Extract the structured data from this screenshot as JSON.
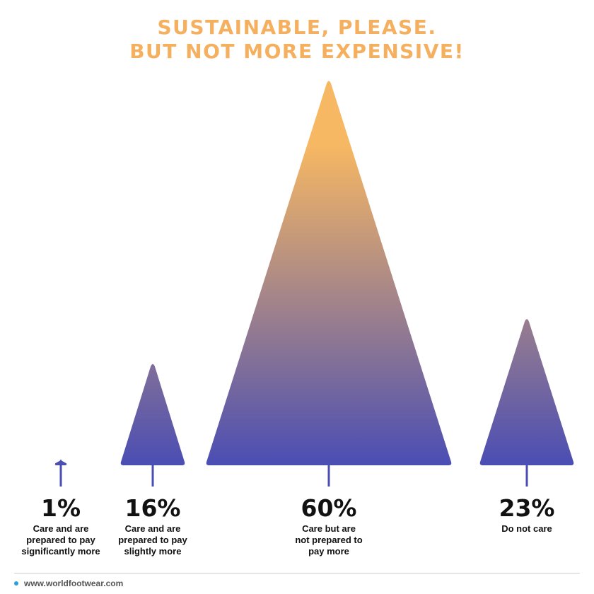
{
  "title": {
    "line1": "SUSTAINABLE, PLEASE.",
    "line2": "BUT NOT MORE EXPENSIVE!"
  },
  "colors": {
    "title": "#F5B05F",
    "gradient_top": "#F7B863",
    "gradient_bottom": "#4A4DB3",
    "stem": "#4A4DB3",
    "footer_dot": "#2A9FD8"
  },
  "chart_data": {
    "type": "bar",
    "categories": [
      "Care and are prepared to pay significantly more",
      "Care and are prepared to pay slightly more",
      "Care but are not prepared to pay more",
      "Do not care"
    ],
    "values": [
      1,
      16,
      60,
      23
    ],
    "value_labels": [
      "1%",
      "16%",
      "60%",
      "23%"
    ],
    "category_lines": [
      [
        "Care and are",
        "prepared to pay",
        "significantly more"
      ],
      [
        "Care and are",
        "prepared to pay",
        "slightly more"
      ],
      [
        "Care but are",
        "not prepared to",
        "pay more"
      ],
      [
        "Do not care"
      ]
    ],
    "ylim": [
      0,
      60
    ],
    "grid": false
  },
  "footer": {
    "url": "www.worldfootwear.com"
  }
}
